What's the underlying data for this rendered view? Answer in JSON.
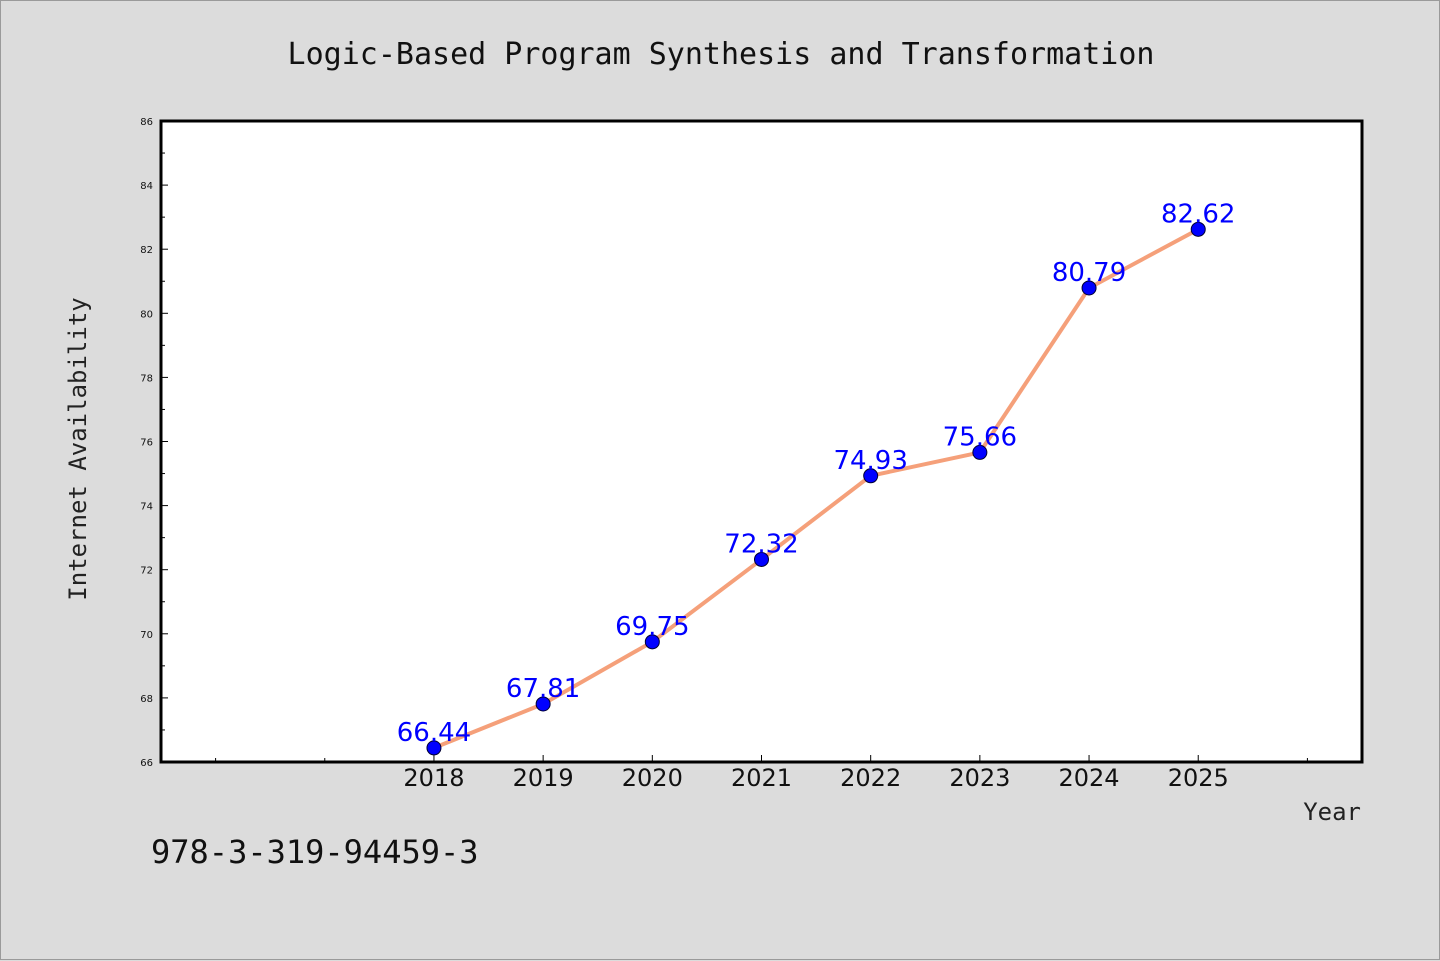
{
  "chart_data": {
    "type": "line",
    "title": "Logic-Based Program Synthesis and Transformation",
    "xlabel": "Year",
    "ylabel": "Internet Availability",
    "x": [
      2018,
      2019,
      2020,
      2021,
      2022,
      2023,
      2024,
      2025
    ],
    "x_tick_labels": [
      "2018",
      "2019",
      "2020",
      "2021",
      "2022",
      "2023",
      "2024",
      "2025"
    ],
    "xlim": [
      2015.5,
      2026.5
    ],
    "ylim": [
      66,
      86
    ],
    "y_ticks": [
      66,
      68,
      70,
      72,
      74,
      76,
      78,
      80,
      82,
      84,
      86
    ],
    "y_tick_labels": [
      "66",
      "68",
      "70",
      "72",
      "74",
      "76",
      "78",
      "80",
      "82",
      "84",
      "86"
    ],
    "series": [
      {
        "values": [
          66.44,
          67.81,
          69.75,
          72.32,
          74.93,
          75.66,
          80.79,
          82.62
        ],
        "labels": [
          "66.44",
          "67.81",
          "69.75",
          "72.32",
          "74.93",
          "75.66",
          "80.79",
          "82.62"
        ]
      }
    ],
    "grid": false,
    "colors": {
      "line": "#f5a07a",
      "marker": "#0000ff",
      "label": "#0000ff",
      "plot_bg": "#ffffff",
      "figure_bg": "#dcdcdc"
    }
  },
  "footer": {
    "isbn": "978-3-319-94459-3"
  }
}
